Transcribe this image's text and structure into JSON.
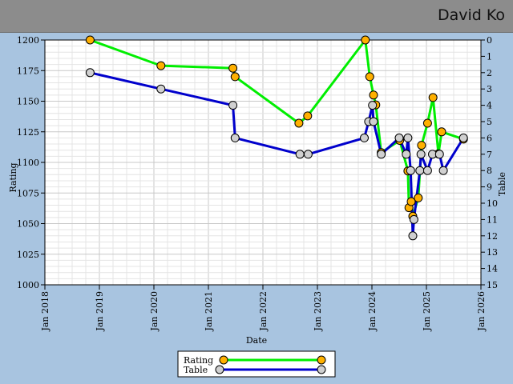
{
  "header": {
    "player_name": "David Ko"
  },
  "chart_data": {
    "type": "line",
    "title": "",
    "xlabel": "Date",
    "ylabel": "Rating",
    "y2label": "Table",
    "xlim": [
      2018.0,
      2026.0
    ],
    "ylim": [
      1000,
      1200
    ],
    "y2lim": [
      15,
      0
    ],
    "x_tick_labels": [
      "Jan 2018",
      "Jan 2019",
      "Jan 2020",
      "Jan 2021",
      "Jan 2022",
      "Jan 2023",
      "Jan 2024",
      "Jan 2025",
      "Jan 2026"
    ],
    "y_tick_labels": [
      "1000",
      "1025",
      "1050",
      "1075",
      "1100",
      "1125",
      "1150",
      "1175",
      "1200"
    ],
    "y2_tick_labels": [
      "0",
      "1",
      "2",
      "3",
      "4",
      "5",
      "6",
      "7",
      "8",
      "9",
      "10",
      "11",
      "12",
      "13",
      "14",
      "15"
    ],
    "grid": true,
    "legend_position": "bottom-center",
    "series": [
      {
        "name": "Rating",
        "axis": "left",
        "line_color": "#00ee00",
        "marker_color": "#ffb000",
        "points": [
          {
            "x": 2018.83,
            "y": 1200
          },
          {
            "x": 2020.13,
            "y": 1179
          },
          {
            "x": 2021.45,
            "y": 1177
          },
          {
            "x": 2021.49,
            "y": 1170
          },
          {
            "x": 2022.66,
            "y": 1132
          },
          {
            "x": 2022.82,
            "y": 1138
          },
          {
            "x": 2023.88,
            "y": 1200
          },
          {
            "x": 2023.96,
            "y": 1170
          },
          {
            "x": 2024.03,
            "y": 1155
          },
          {
            "x": 2024.07,
            "y": 1147
          },
          {
            "x": 2024.17,
            "y": 1108
          },
          {
            "x": 2024.51,
            "y": 1118
          },
          {
            "x": 2024.66,
            "y": 1093
          },
          {
            "x": 2024.68,
            "y": 1063
          },
          {
            "x": 2024.72,
            "y": 1068
          },
          {
            "x": 2024.75,
            "y": 1056
          },
          {
            "x": 2024.85,
            "y": 1071
          },
          {
            "x": 2024.91,
            "y": 1114
          },
          {
            "x": 2025.02,
            "y": 1132
          },
          {
            "x": 2025.12,
            "y": 1153
          },
          {
            "x": 2025.22,
            "y": 1107
          },
          {
            "x": 2025.28,
            "y": 1125
          },
          {
            "x": 2025.68,
            "y": 1119
          }
        ]
      },
      {
        "name": "Table",
        "axis": "right",
        "line_color": "#0000cc",
        "marker_color": "#d0d0d0",
        "points": [
          {
            "x": 2018.83,
            "y": 2
          },
          {
            "x": 2020.13,
            "y": 3
          },
          {
            "x": 2021.45,
            "y": 4
          },
          {
            "x": 2021.49,
            "y": 6
          },
          {
            "x": 2022.68,
            "y": 7
          },
          {
            "x": 2022.83,
            "y": 7
          },
          {
            "x": 2023.86,
            "y": 6
          },
          {
            "x": 2023.94,
            "y": 5
          },
          {
            "x": 2024.01,
            "y": 4
          },
          {
            "x": 2024.03,
            "y": 5
          },
          {
            "x": 2024.17,
            "y": 7
          },
          {
            "x": 2024.5,
            "y": 6
          },
          {
            "x": 2024.63,
            "y": 7
          },
          {
            "x": 2024.66,
            "y": 6
          },
          {
            "x": 2024.71,
            "y": 8
          },
          {
            "x": 2024.75,
            "y": 12
          },
          {
            "x": 2024.77,
            "y": 11
          },
          {
            "x": 2024.88,
            "y": 8
          },
          {
            "x": 2024.9,
            "y": 7
          },
          {
            "x": 2025.02,
            "y": 8
          },
          {
            "x": 2025.11,
            "y": 7
          },
          {
            "x": 2025.24,
            "y": 7
          },
          {
            "x": 2025.31,
            "y": 8
          },
          {
            "x": 2025.68,
            "y": 6
          }
        ]
      }
    ]
  }
}
